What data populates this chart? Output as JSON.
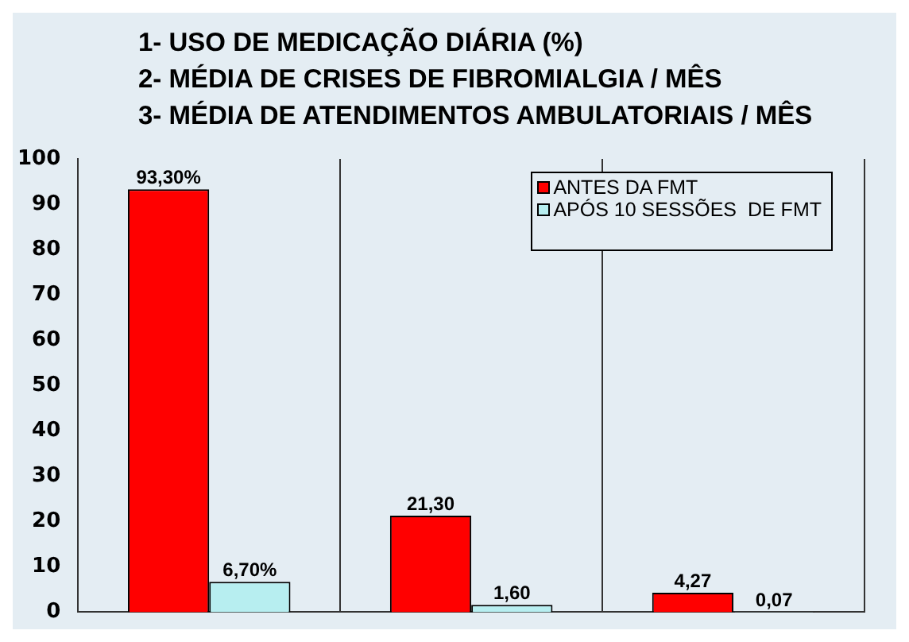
{
  "chart_data": {
    "type": "bar",
    "title": "1- USO DE MEDICAÇÃO DIÁRIA (%)\n2- MÉDIA DE CRISES DE FIBROMIALGIA / MÊS\n3- MÉDIA DE ATENDIMENTOS AMBULATORIAIS / MÊS",
    "categories": [
      null,
      null,
      null
    ],
    "series": [
      {
        "name": "ANTES DA FMT",
        "color": "#ff0000",
        "values": [
          93.3,
          21.3,
          4.27
        ],
        "value_labels": [
          "93,30%",
          "21,30",
          "4,27"
        ]
      },
      {
        "name": "APÓS 10 SESSÕES  DE FMT",
        "color": "#b7eef0",
        "values": [
          6.7,
          1.6,
          0.07
        ],
        "value_labels": [
          "6,70%",
          "1,60",
          "0,07"
        ]
      }
    ],
    "ylim": [
      0,
      100
    ],
    "yticks": [
      0,
      10,
      20,
      30,
      40,
      50,
      60,
      70,
      80,
      90,
      100
    ],
    "grid": "x",
    "legend": "right"
  }
}
